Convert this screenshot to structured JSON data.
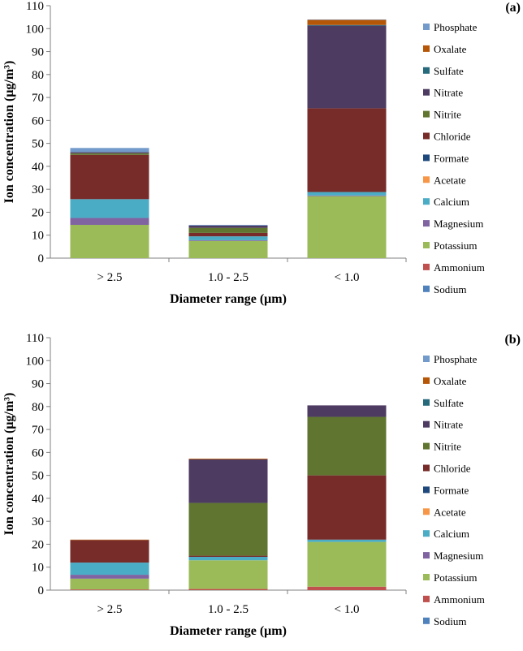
{
  "colors": {
    "Sodium": "#4f81bd",
    "Ammonium": "#c0504d",
    "Potassium": "#9bbb59",
    "Magnesium": "#8064a2",
    "Calcium": "#4bacc6",
    "Acetate": "#f79646",
    "Formate": "#1f497d",
    "Chloride": "#772c2a",
    "Nitrite": "#5f7530",
    "Nitrate": "#4d3b62",
    "Sulfate": "#276a7c",
    "Oxalate": "#b65708",
    "Phosphate": "#729aca"
  },
  "chart_data": [
    {
      "type": "bar",
      "stacked": true,
      "panel_label": "(a)",
      "categories": [
        "> 2.5",
        "1.0 - 2.5",
        "< 1.0"
      ],
      "xlabel": "Diameter range (μm)",
      "ylabel": "Ion concentration (μg/m³)",
      "ylim": [
        0,
        110
      ],
      "yticks": [
        "0",
        "10",
        "20",
        "30",
        "40",
        "50",
        "60",
        "70",
        "80",
        "90",
        "100",
        "110"
      ],
      "legend_order": [
        "Phosphate",
        "Oxalate",
        "Sulfate",
        "Nitrate",
        "Nitrite",
        "Chloride",
        "Formate",
        "Acetate",
        "Calcium",
        "Magnesium",
        "Potassium",
        "Ammonium",
        "Sodium"
      ],
      "series": [
        {
          "name": "Sodium",
          "values": [
            0.0,
            0.0,
            0.0
          ]
        },
        {
          "name": "Ammonium",
          "values": [
            0.0,
            0.0,
            0.0
          ]
        },
        {
          "name": "Potassium",
          "values": [
            14.5,
            7.5,
            27.0
          ]
        },
        {
          "name": "Magnesium",
          "values": [
            3.0,
            0.3,
            0.3
          ]
        },
        {
          "name": "Calcium",
          "values": [
            8.2,
            1.7,
            1.5
          ]
        },
        {
          "name": "Acetate",
          "values": [
            0.0,
            0.0,
            0.0
          ]
        },
        {
          "name": "Formate",
          "values": [
            0.0,
            0.0,
            0.0
          ]
        },
        {
          "name": "Chloride",
          "values": [
            19.3,
            1.5,
            36.5
          ]
        },
        {
          "name": "Nitrite",
          "values": [
            0.7,
            2.2,
            0.0
          ]
        },
        {
          "name": "Nitrate",
          "values": [
            0.5,
            1.0,
            36.0
          ]
        },
        {
          "name": "Sulfate",
          "values": [
            0.0,
            0.0,
            0.3
          ]
        },
        {
          "name": "Oxalate",
          "values": [
            0.0,
            0.0,
            2.2
          ]
        },
        {
          "name": "Phosphate",
          "values": [
            1.8,
            0.3,
            0.2
          ]
        }
      ]
    },
    {
      "type": "bar",
      "stacked": true,
      "panel_label": "(b)",
      "categories": [
        "> 2.5",
        "1.0 - 2.5",
        "< 1.0"
      ],
      "xlabel": "Diameter range (μm)",
      "ylabel": "Ion concentration (μg/m³)",
      "ylim": [
        0,
        110
      ],
      "yticks": [
        "0",
        "10",
        "20",
        "30",
        "40",
        "50",
        "60",
        "70",
        "80",
        "90",
        "100",
        "110"
      ],
      "legend_order": [
        "Phosphate",
        "Oxalate",
        "Sulfate",
        "Nitrate",
        "Nitrite",
        "Chloride",
        "Formate",
        "Acetate",
        "Calcium",
        "Magnesium",
        "Potassium",
        "Ammonium",
        "Sodium"
      ],
      "series": [
        {
          "name": "Sodium",
          "values": [
            0.0,
            0.0,
            0.0
          ]
        },
        {
          "name": "Ammonium",
          "values": [
            0.3,
            0.5,
            1.5
          ]
        },
        {
          "name": "Potassium",
          "values": [
            4.7,
            12.5,
            19.5
          ]
        },
        {
          "name": "Magnesium",
          "values": [
            1.7,
            0.0,
            0.0
          ]
        },
        {
          "name": "Calcium",
          "values": [
            5.3,
            1.5,
            1.0
          ]
        },
        {
          "name": "Acetate",
          "values": [
            0.0,
            0.0,
            0.0
          ]
        },
        {
          "name": "Formate",
          "values": [
            0.0,
            0.0,
            0.0
          ]
        },
        {
          "name": "Chloride",
          "values": [
            9.8,
            0.5,
            28.0
          ]
        },
        {
          "name": "Nitrite",
          "values": [
            0.0,
            23.0,
            25.5
          ]
        },
        {
          "name": "Nitrate",
          "values": [
            0.0,
            19.0,
            5.0
          ]
        },
        {
          "name": "Sulfate",
          "values": [
            0.0,
            0.0,
            0.0
          ]
        },
        {
          "name": "Oxalate",
          "values": [
            0.2,
            0.3,
            0.0
          ]
        },
        {
          "name": "Phosphate",
          "values": [
            0.0,
            0.0,
            0.0
          ]
        }
      ]
    }
  ]
}
